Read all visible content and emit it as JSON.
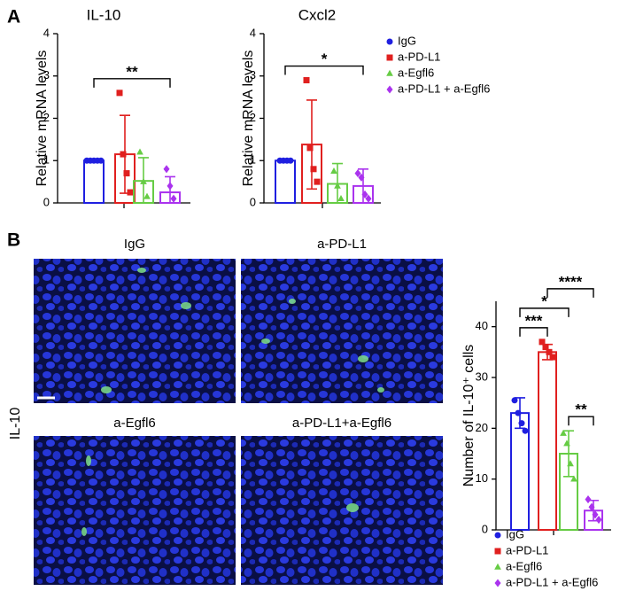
{
  "panels": [
    "A",
    "B"
  ],
  "chart_data": [
    {
      "type": "bar",
      "title": "IL-10",
      "y_label": "Relative mRNA levels",
      "ylim": [
        0,
        4
      ],
      "yticks": [
        0,
        1,
        2,
        3,
        4
      ],
      "series": [
        {
          "name": "IgG",
          "color": "#1f1fe0",
          "marker": "circle",
          "value": 1,
          "error": 0,
          "points": [
            1,
            1,
            1,
            1,
            1
          ]
        },
        {
          "name": "a-PD-L1",
          "color": "#e0201f",
          "marker": "square",
          "value": 1.15,
          "error": 0.92,
          "points": [
            2.6,
            1.15,
            0.7,
            0.25
          ]
        },
        {
          "name": "a-Egfl6",
          "color": "#66cc44",
          "marker": "triangle",
          "value": 0.52,
          "error": 0.55,
          "points": [
            1.2,
            0.5,
            0.15
          ]
        },
        {
          "name": "a-PD-L1 + a-Egfl6",
          "color": "#aa33ee",
          "marker": "diamond",
          "value": 0.25,
          "error": 0.37,
          "points": [
            0.8,
            0.4,
            0.1
          ]
        }
      ],
      "annotations": [
        {
          "text": "**",
          "from": 0,
          "to": 3
        }
      ]
    },
    {
      "type": "bar",
      "title": "Cxcl2",
      "y_label": "Relative mRNA levels",
      "ylim": [
        0,
        4
      ],
      "yticks": [
        0,
        1,
        2,
        3,
        4
      ],
      "series": [
        {
          "color": "#1f1fe0",
          "marker": "circle",
          "value": 1,
          "error": 0,
          "points": [
            1,
            1,
            1,
            1
          ]
        },
        {
          "color": "#e0201f",
          "marker": "square",
          "value": 1.38,
          "error": 1.05,
          "points": [
            2.9,
            1.3,
            0.8,
            0.5
          ]
        },
        {
          "color": "#66cc44",
          "marker": "triangle",
          "value": 0.45,
          "error": 0.48,
          "points": [
            0.75,
            0.4,
            0.1
          ]
        },
        {
          "color": "#aa33ee",
          "marker": "diamond",
          "value": 0.4,
          "error": 0.4,
          "points": [
            0.7,
            0.6,
            0.2,
            0.1
          ]
        }
      ],
      "annotations": [
        {
          "text": "*",
          "from": 0,
          "to": 3
        }
      ]
    },
    {
      "type": "bar",
      "y_label": "Number of IL-10⁺ cells",
      "ylim": [
        0,
        45
      ],
      "yticks": [
        0,
        10,
        20,
        30,
        40
      ],
      "series": [
        {
          "name": "IgG",
          "color": "#1f1fe0",
          "marker": "circle",
          "value": 23,
          "error": 3,
          "points": [
            25.5,
            23,
            21,
            19.5
          ]
        },
        {
          "name": "a-PD-L1",
          "color": "#e0201f",
          "marker": "square",
          "value": 35,
          "error": 1.5,
          "points": [
            37,
            36,
            35,
            34
          ]
        },
        {
          "name": "a-Egfl6",
          "color": "#66cc44",
          "marker": "triangle",
          "value": 15,
          "error": 4.5,
          "points": [
            19,
            17,
            13,
            10
          ]
        },
        {
          "name": "a-PD-L1 + a-Egfl6",
          "color": "#aa33ee",
          "marker": "diamond",
          "value": 3.8,
          "error": 2,
          "points": [
            6,
            4.5,
            3,
            2
          ]
        }
      ],
      "annotations": [
        {
          "text": "***",
          "from": 0,
          "to": 1
        },
        {
          "text": "**",
          "from": 2,
          "to": 3
        },
        {
          "text": "*",
          "from": 0,
          "to": 2
        },
        {
          "text": "****",
          "from": 1,
          "to": 3
        }
      ]
    }
  ],
  "images": {
    "side_label": "IL-10",
    "titles": [
      "IgG",
      "a-PD-L1",
      "a-Egfl6",
      "a-PD-L1+a-Egfl6"
    ]
  }
}
